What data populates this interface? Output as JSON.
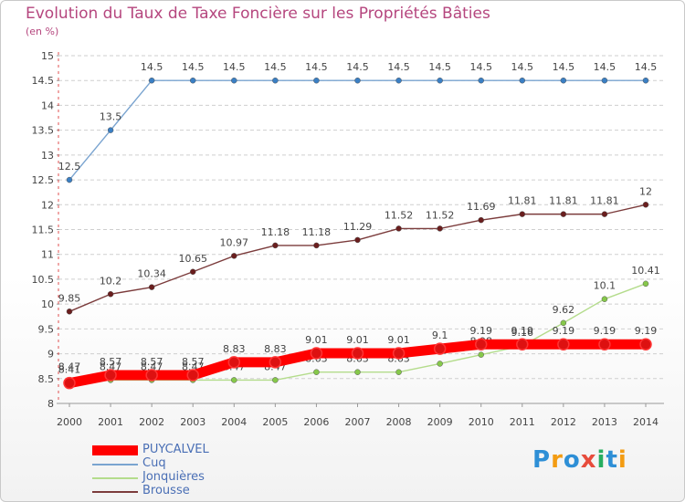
{
  "title": "Evolution du Taux de Taxe Foncière sur les Propriétés Bâties",
  "unit": "(en %)",
  "logo": {
    "text": "Proxiti",
    "colors": [
      "#2e8fd6",
      "#f39c12",
      "#2e8fd6",
      "#e74c3c",
      "#27ae60",
      "#2e8fd6",
      "#f39c12"
    ]
  },
  "chart_data": {
    "type": "line",
    "title": "Evolution du Taux de Taxe Foncière sur les Propriétés Bâties",
    "ylabel": "(en %)",
    "xlabel": "",
    "x": [
      "2000",
      "2001",
      "2002",
      "2003",
      "2004",
      "2005",
      "2006",
      "2007",
      "2008",
      "2009",
      "2010",
      "2011",
      "2012",
      "2013",
      "2014"
    ],
    "ylim": [
      8,
      15
    ],
    "yticks": [
      "8",
      "8.5",
      "9",
      "9.5",
      "10",
      "10.5",
      "11",
      "11.5",
      "12",
      "12.5",
      "13",
      "13.5",
      "14",
      "14.5",
      "15"
    ],
    "grid": "dashed horizontal",
    "legend_position": "bottom-left",
    "series": [
      {
        "name": "PUYCALVEL",
        "color": "#ff0000",
        "marker": "#dd1111",
        "values": [
          8.41,
          8.57,
          8.57,
          8.57,
          8.83,
          8.83,
          9.01,
          9.01,
          9.01,
          9.1,
          9.19,
          9.19,
          9.19,
          9.19,
          9.19
        ],
        "labels": [
          "8.41",
          "8.57",
          "8.57",
          "8.57",
          "8.83",
          "8.83",
          "9.01",
          "9.01",
          "9.01",
          "9.1",
          "9.19",
          "9.19",
          "9.19",
          "9.19",
          "9.19"
        ]
      },
      {
        "name": "Cuq",
        "color": "#7aa4d0",
        "marker": "#3a7fc4",
        "values": [
          12.5,
          13.5,
          14.5,
          14.5,
          14.5,
          14.5,
          14.5,
          14.5,
          14.5,
          14.5,
          14.5,
          14.5,
          14.5,
          14.5,
          14.5
        ],
        "labels": [
          "12.5",
          "13.5",
          "14.5",
          "14.5",
          "14.5",
          "14.5",
          "14.5",
          "14.5",
          "14.5",
          "14.5",
          "14.5",
          "14.5",
          "14.5",
          "14.5",
          "14.5"
        ]
      },
      {
        "name": "Jonquières",
        "color": "#b4dc8c",
        "marker": "#86c84a",
        "values": [
          8.47,
          8.47,
          8.47,
          8.47,
          8.47,
          8.47,
          8.63,
          8.63,
          8.63,
          8.8,
          8.98,
          9.16,
          9.62,
          10.1,
          10.41
        ],
        "labels": [
          "8.47",
          "8.47",
          "8.47",
          "8.47",
          "8.47",
          "8.47",
          "8.63",
          "8.63",
          "8.63",
          "8.8",
          "8.98",
          "9.16",
          "9.62",
          "10.1",
          "10.41"
        ]
      },
      {
        "name": "Brousse",
        "color": "#7b3b3b",
        "marker": "#6a1e1e",
        "values": [
          9.85,
          10.2,
          10.34,
          10.65,
          10.97,
          11.18,
          11.18,
          11.29,
          11.52,
          11.52,
          11.69,
          11.81,
          11.81,
          11.81,
          12
        ],
        "labels": [
          "9.85",
          "10.2",
          "10.34",
          "10.65",
          "10.97",
          "11.18",
          "11.18",
          "11.29",
          "11.52",
          "11.52",
          "11.69",
          "11.81",
          "11.81",
          "11.81",
          "12"
        ]
      }
    ]
  }
}
